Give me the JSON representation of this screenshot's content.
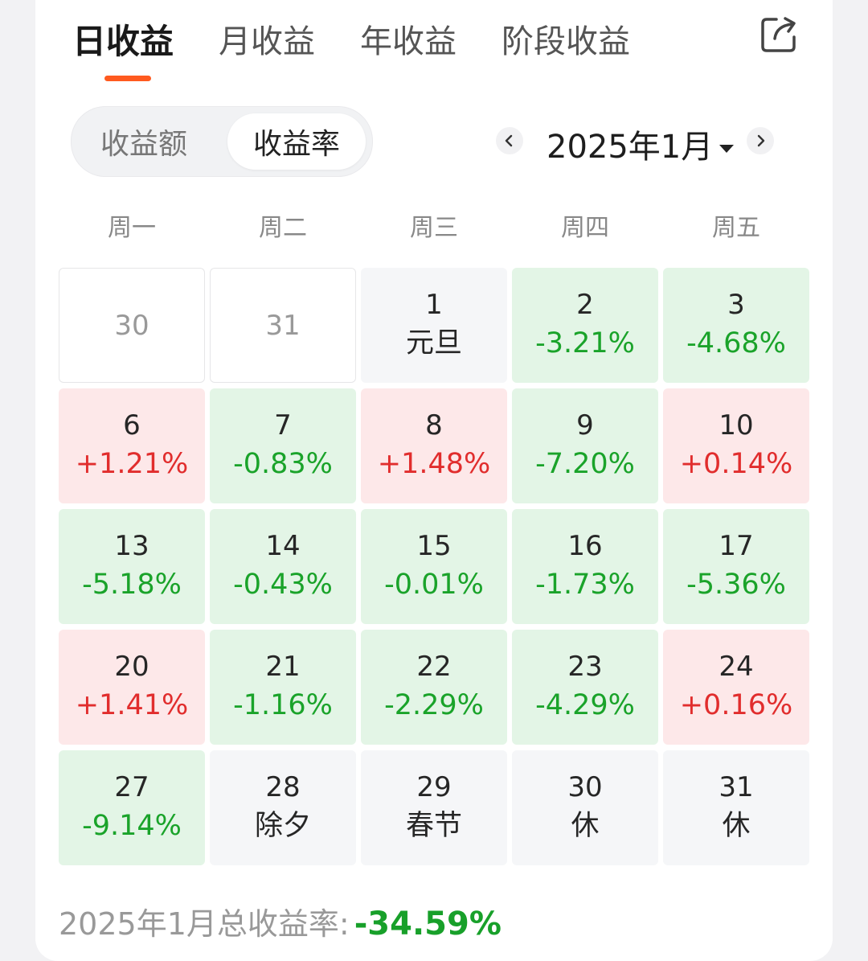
{
  "tabs": [
    {
      "label": "日收益",
      "active": true
    },
    {
      "label": "月收益",
      "active": false
    },
    {
      "label": "年收益",
      "active": false
    },
    {
      "label": "阶段收益",
      "active": false
    }
  ],
  "share_icon": "share-icon",
  "toggle": {
    "amount_label": "收益额",
    "rate_label": "收益率",
    "selected": "收益率"
  },
  "month_nav": {
    "prev_icon": "chevron-left-icon",
    "next_icon": "chevron-right-icon",
    "current": "2025年1月",
    "dropdown_icon": "caret-down-icon"
  },
  "weekdays": [
    "周一",
    "周二",
    "周三",
    "周四",
    "周五"
  ],
  "colors": {
    "accent": "#ff5a1f",
    "down_text": "#1aa32a",
    "up_text": "#e12d2d",
    "down_bg": "#e3f5e6",
    "up_bg": "#fde8e9"
  },
  "calendar": [
    [
      {
        "day": "30",
        "value": "",
        "type": "outside"
      },
      {
        "day": "31",
        "value": "",
        "type": "outside"
      },
      {
        "day": "1",
        "value": "元旦",
        "type": "neutral"
      },
      {
        "day": "2",
        "value": "-3.21%",
        "type": "down"
      },
      {
        "day": "3",
        "value": "-4.68%",
        "type": "down"
      }
    ],
    [
      {
        "day": "6",
        "value": "+1.21%",
        "type": "up"
      },
      {
        "day": "7",
        "value": "-0.83%",
        "type": "down"
      },
      {
        "day": "8",
        "value": "+1.48%",
        "type": "up"
      },
      {
        "day": "9",
        "value": "-7.20%",
        "type": "down"
      },
      {
        "day": "10",
        "value": "+0.14%",
        "type": "up"
      }
    ],
    [
      {
        "day": "13",
        "value": "-5.18%",
        "type": "down"
      },
      {
        "day": "14",
        "value": "-0.43%",
        "type": "down"
      },
      {
        "day": "15",
        "value": "-0.01%",
        "type": "down"
      },
      {
        "day": "16",
        "value": "-1.73%",
        "type": "down"
      },
      {
        "day": "17",
        "value": "-5.36%",
        "type": "down"
      }
    ],
    [
      {
        "day": "20",
        "value": "+1.41%",
        "type": "up"
      },
      {
        "day": "21",
        "value": "-1.16%",
        "type": "down"
      },
      {
        "day": "22",
        "value": "-2.29%",
        "type": "down"
      },
      {
        "day": "23",
        "value": "-4.29%",
        "type": "down"
      },
      {
        "day": "24",
        "value": "+0.16%",
        "type": "up"
      }
    ],
    [
      {
        "day": "27",
        "value": "-9.14%",
        "type": "down"
      },
      {
        "day": "28",
        "value": "除夕",
        "type": "neutral"
      },
      {
        "day": "29",
        "value": "春节",
        "type": "neutral"
      },
      {
        "day": "30",
        "value": "休",
        "type": "neutral"
      },
      {
        "day": "31",
        "value": "休",
        "type": "neutral"
      }
    ]
  ],
  "summary": {
    "label": "2025年1月总收益率:",
    "total": "-34.59%"
  }
}
